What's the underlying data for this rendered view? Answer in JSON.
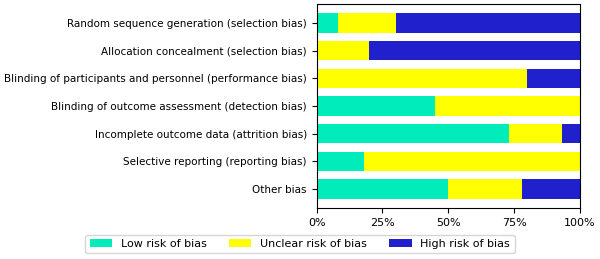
{
  "chart_data": {
    "type": "bar",
    "orientation": "horizontal",
    "stacked": true,
    "categories": [
      "Random sequence generation (selection bias)",
      "Allocation concealment (selection bias)",
      "Blinding of participants and personnel (performance bias)",
      "Blinding of outcome assessment (detection bias)",
      "Incomplete outcome data (attrition bias)",
      "Selective reporting (reporting bias)",
      "Other bias"
    ],
    "series": [
      {
        "name": "Low risk of bias",
        "color": "#00EDBB",
        "values": [
          8,
          0,
          0,
          45,
          73,
          18,
          50
        ]
      },
      {
        "name": "Unclear risk of bias",
        "color": "#FFFF00",
        "values": [
          22,
          20,
          80,
          55,
          20,
          82,
          28
        ]
      },
      {
        "name": "High risk of bias",
        "color": "#2020CC",
        "values": [
          70,
          80,
          20,
          0,
          7,
          0,
          22
        ]
      }
    ],
    "xlim": [
      0,
      100
    ],
    "xticks": [
      {
        "value": 0,
        "label": "0%"
      },
      {
        "value": 25,
        "label": "25%"
      },
      {
        "value": 50,
        "label": "50%"
      },
      {
        "value": 75,
        "label": "75%"
      },
      {
        "value": 100,
        "label": "100%"
      }
    ],
    "grid": false,
    "legend": "lower center"
  }
}
